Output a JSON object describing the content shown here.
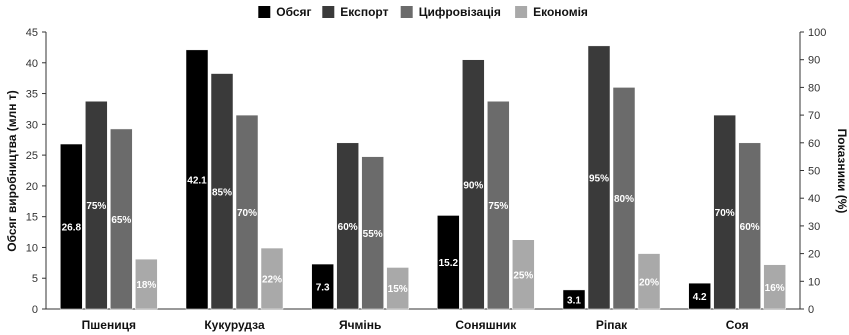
{
  "chart_data": {
    "type": "bar",
    "categories": [
      "Пшениця",
      "Кукурудза",
      "Ячмінь",
      "Соняшник",
      "Ріпак",
      "Соя"
    ],
    "y_left": {
      "label": "Обсяг виробництва (млн т)",
      "lim": [
        0,
        45
      ],
      "ticks": [
        0,
        5,
        10,
        15,
        20,
        25,
        30,
        35,
        40,
        45
      ]
    },
    "y_right": {
      "label": "Показники (%)",
      "lim": [
        0,
        100
      ],
      "ticks": [
        0,
        10,
        20,
        30,
        40,
        50,
        60,
        70,
        80,
        90,
        100
      ]
    },
    "legend_position": "top-center",
    "grid": false,
    "series": [
      {
        "name": "Обсяг",
        "axis": "left",
        "color": "#000000",
        "values": [
          26.8,
          42.1,
          7.3,
          15.2,
          3.1,
          4.2
        ],
        "labels": [
          "26.8",
          "42.1",
          "7.3",
          "15.2",
          "3.1",
          "4.2"
        ]
      },
      {
        "name": "Експорт",
        "axis": "right",
        "color": "#3a3a3a",
        "values": [
          75,
          85,
          60,
          90,
          95,
          70
        ],
        "labels": [
          "75%",
          "85%",
          "60%",
          "90%",
          "95%",
          "70%"
        ]
      },
      {
        "name": "Цифровізація",
        "axis": "right",
        "color": "#6b6b6b",
        "values": [
          65,
          70,
          55,
          75,
          80,
          60
        ],
        "labels": [
          "65%",
          "70%",
          "55%",
          "75%",
          "80%",
          "60%"
        ]
      },
      {
        "name": "Економія",
        "axis": "right",
        "color": "#a9a9a9",
        "values": [
          18,
          22,
          15,
          25,
          20,
          16
        ],
        "labels": [
          "18%",
          "22%",
          "15%",
          "25%",
          "20%",
          "16%"
        ]
      }
    ]
  }
}
